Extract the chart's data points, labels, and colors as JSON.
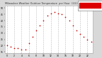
{
  "title": "Milwaukee Weather Outdoor Temperature  per Hour  (24 Hours)",
  "hours": [
    0,
    1,
    2,
    3,
    4,
    5,
    6,
    7,
    8,
    9,
    10,
    11,
    12,
    13,
    14,
    15,
    16,
    17,
    18,
    19,
    20,
    21,
    22,
    23
  ],
  "temps": [
    20,
    19,
    18,
    18,
    17,
    17,
    22,
    27,
    32,
    36,
    40,
    44,
    46,
    47,
    46,
    45,
    43,
    40,
    36,
    32,
    29,
    27,
    25,
    23
  ],
  "dot_color": "#cc0000",
  "bg_color": "#d8d8d8",
  "plot_bg": "#ffffff",
  "grid_color": "#aaaaaa",
  "text_color": "#000000",
  "title_color": "#333333",
  "ylim": [
    14,
    52
  ],
  "xlim": [
    -0.5,
    23.5
  ],
  "yticks": [
    15,
    20,
    25,
    30,
    35,
    40,
    45,
    50
  ],
  "xtick_labels": [
    "0",
    "2",
    "4",
    "6",
    "8",
    "10",
    "12",
    "14",
    "16",
    "18",
    "20",
    "22"
  ],
  "xtick_vals": [
    0,
    2,
    4,
    6,
    8,
    10,
    12,
    14,
    16,
    18,
    20,
    22
  ],
  "legend_red": "#dd0000",
  "legend_bg": "#ffffff",
  "legend_border": "#888888"
}
